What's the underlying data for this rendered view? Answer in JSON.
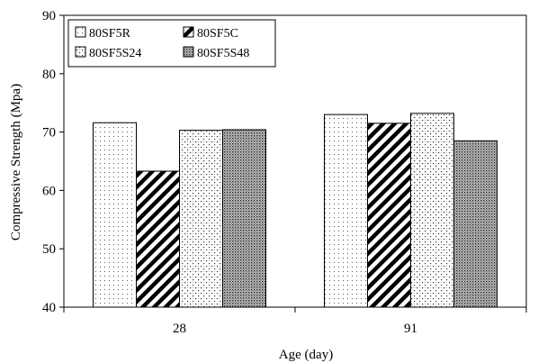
{
  "chart_data": {
    "type": "bar",
    "title": "",
    "xlabel": "Age (day)",
    "ylabel": "Compressive Strength (Mpa)",
    "categories": [
      "28",
      "91"
    ],
    "ylim": [
      40,
      90
    ],
    "yticks": [
      "40",
      "50",
      "60",
      "70",
      "80",
      "90"
    ],
    "grid": false,
    "legend_position": "top-left",
    "series": [
      {
        "name": "80SF5R",
        "values": [
          71.6,
          73.0
        ],
        "pattern": "sparse-dots"
      },
      {
        "name": "80SF5C",
        "values": [
          63.3,
          71.5
        ],
        "pattern": "diagonal-stripes"
      },
      {
        "name": "80SF5S24",
        "values": [
          70.3,
          73.2
        ],
        "pattern": "medium-dots"
      },
      {
        "name": "80SF5S48",
        "values": [
          70.4,
          68.5
        ],
        "pattern": "dense-dots"
      }
    ]
  }
}
